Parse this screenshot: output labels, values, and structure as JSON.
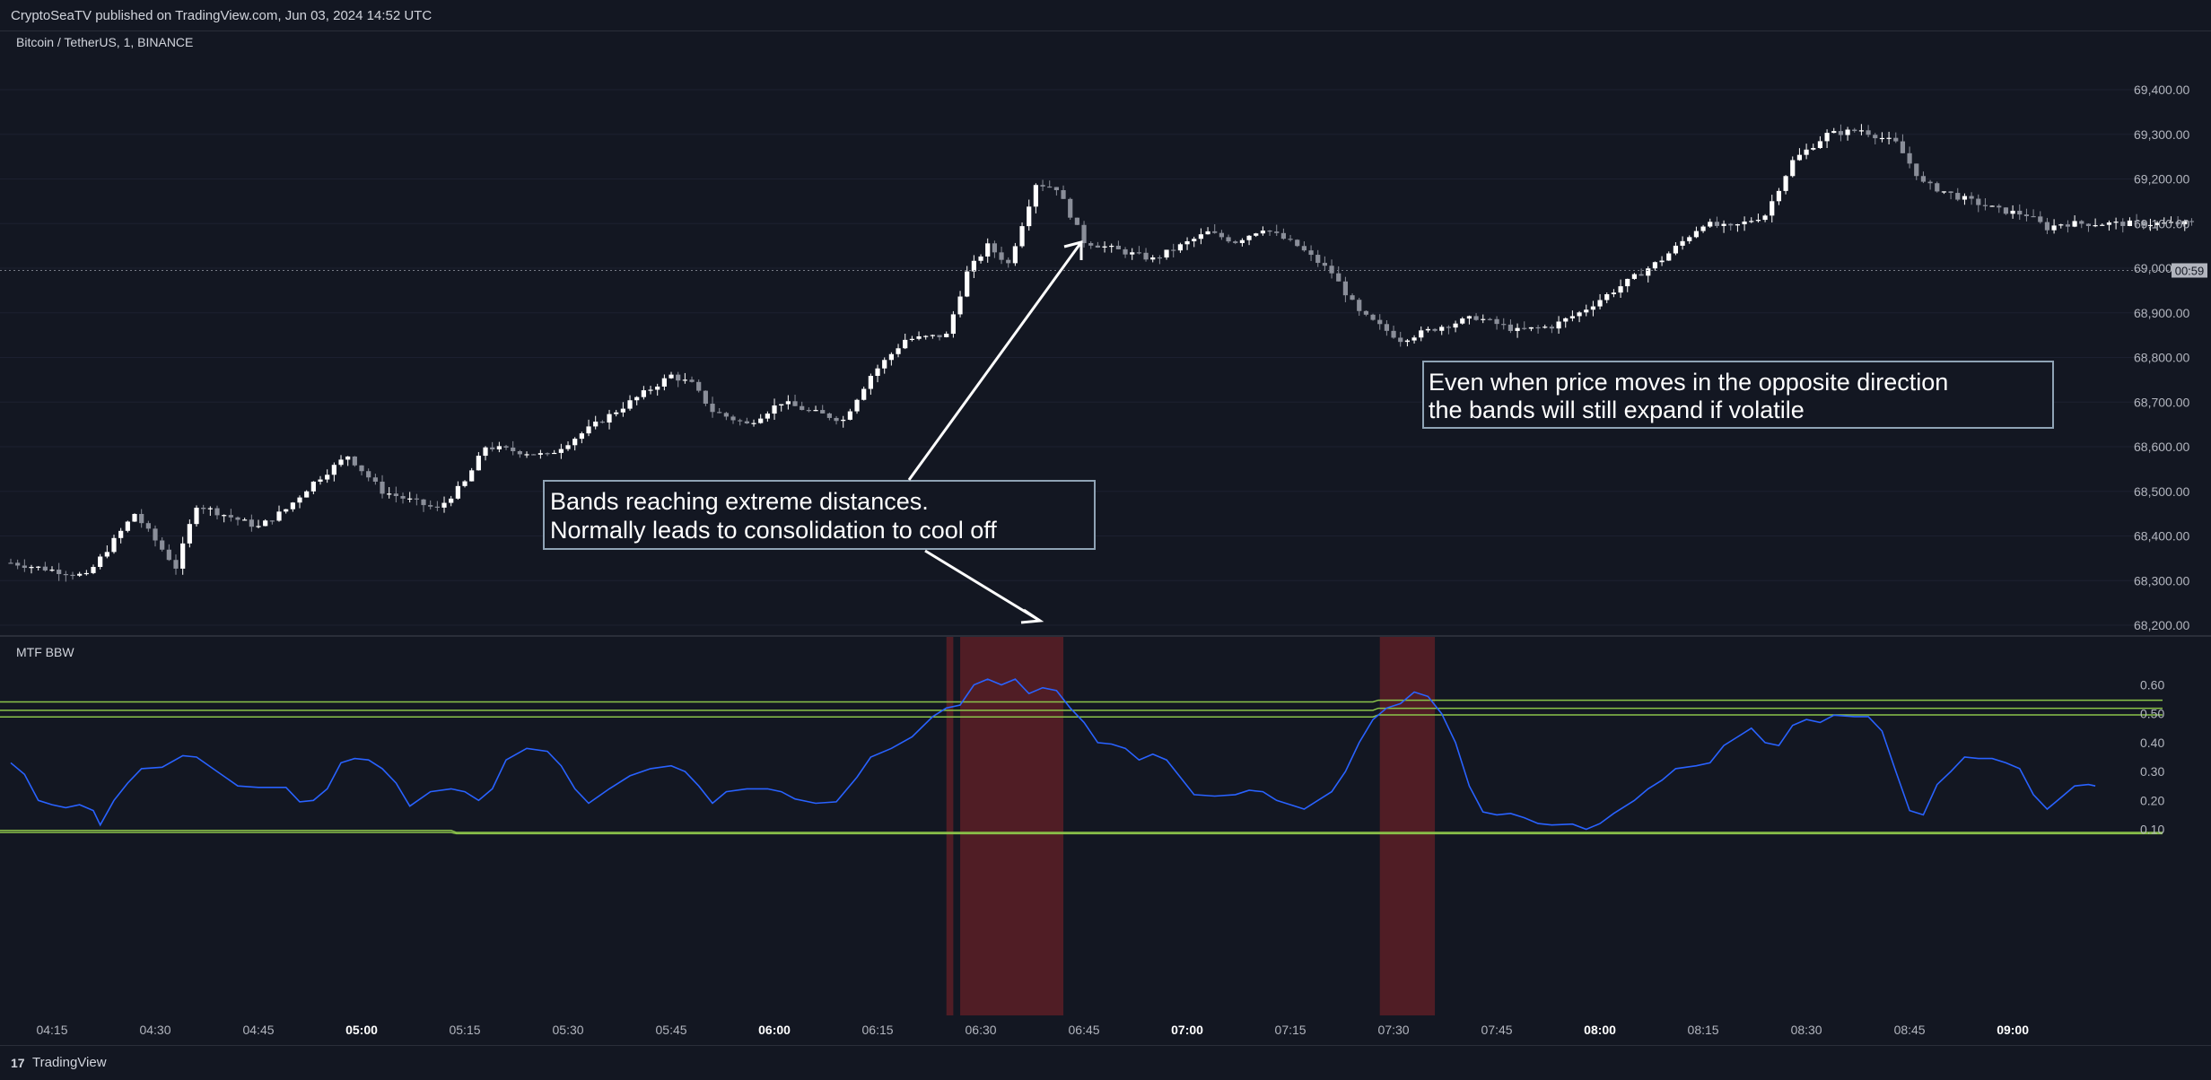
{
  "header": {
    "publish_text": "CryptoSeaTV published on TradingView.com, Jun 03, 2024 14:52 UTC"
  },
  "footer": {
    "brand": "TradingView",
    "logo_mark": "17"
  },
  "colors": {
    "background": "#131722",
    "up_candle": "#ffffff",
    "down_candle": "#8a8e99",
    "bbw_line": "#2962ff",
    "band_line": "#8bc34a",
    "highlight": "#5c1f26"
  },
  "chart_data": [
    {
      "type": "candlestick",
      "title": "Bitcoin / TetherUS, 1, BINANCE",
      "price_axis": {
        "ylim": [
          68200,
          69400
        ],
        "ticks": [
          "69,400.00",
          "69,300.00",
          "69,200.00",
          "69,100.00",
          "69,000.00",
          "68,900.00",
          "68,800.00",
          "68,700.00",
          "68,600.00",
          "68,500.00",
          "68,400.00",
          "68,300.00",
          "68,200.00"
        ],
        "tick_values": [
          69400,
          69300,
          69200,
          69100,
          69000,
          68900,
          68800,
          68700,
          68600,
          68500,
          68400,
          68300,
          68200
        ]
      },
      "current_price_line": 68995,
      "countdown_label": "00:59",
      "time_axis": {
        "start": "04:09",
        "minutes": 318,
        "ticks": [
          "04:15",
          "04:30",
          "04:45",
          "05:00",
          "05:15",
          "05:30",
          "05:45",
          "06:00",
          "06:15",
          "06:30",
          "06:45",
          "07:00",
          "07:15",
          "07:30",
          "07:45",
          "08:00",
          "08:15",
          "08:30",
          "08:45",
          "09:00"
        ],
        "bold_ticks": [
          "05:00",
          "06:00",
          "07:00",
          "08:00",
          "09:00"
        ]
      },
      "close_anchors": [
        [
          "04:09",
          68340
        ],
        [
          "04:20",
          68310
        ],
        [
          "04:27",
          68450
        ],
        [
          "04:33",
          68330
        ],
        [
          "04:36",
          68470
        ],
        [
          "04:45",
          68420
        ],
        [
          "04:49",
          68460
        ],
        [
          "04:53",
          68520
        ],
        [
          "04:58",
          68580
        ],
        [
          "05:03",
          68500
        ],
        [
          "05:11",
          68460
        ],
        [
          "05:15",
          68520
        ],
        [
          "05:18",
          68600
        ],
        [
          "05:27",
          68580
        ],
        [
          "05:33",
          68640
        ],
        [
          "05:39",
          68700
        ],
        [
          "05:45",
          68760
        ],
        [
          "05:48",
          68740
        ],
        [
          "05:51",
          68680
        ],
        [
          "05:56",
          68650
        ],
        [
          "06:01",
          68700
        ],
        [
          "06:05",
          68680
        ],
        [
          "06:10",
          68660
        ],
        [
          "06:14",
          68760
        ],
        [
          "06:19",
          68840
        ],
        [
          "06:25",
          68850
        ],
        [
          "06:28",
          68990
        ],
        [
          "06:31",
          69050
        ],
        [
          "06:34",
          69010
        ],
        [
          "06:38",
          69190
        ],
        [
          "06:41",
          69180
        ],
        [
          "06:45",
          69060
        ],
        [
          "06:50",
          69040
        ],
        [
          "06:55",
          69020
        ],
        [
          "06:59",
          69050
        ],
        [
          "07:03",
          69080
        ],
        [
          "07:07",
          69060
        ],
        [
          "07:11",
          69090
        ],
        [
          "07:16",
          69050
        ],
        [
          "07:21",
          68990
        ],
        [
          "07:25",
          68900
        ],
        [
          "07:31",
          68840
        ],
        [
          "07:37",
          68870
        ],
        [
          "07:42",
          68890
        ],
        [
          "07:48",
          68860
        ],
        [
          "07:53",
          68870
        ],
        [
          "07:57",
          68900
        ],
        [
          "08:04",
          68970
        ],
        [
          "08:09",
          69020
        ],
        [
          "08:15",
          69100
        ],
        [
          "08:19",
          69090
        ],
        [
          "08:24",
          69120
        ],
        [
          "08:28",
          69240
        ],
        [
          "08:33",
          69300
        ],
        [
          "08:38",
          69310
        ],
        [
          "08:43",
          69280
        ],
        [
          "08:47",
          69190
        ],
        [
          "08:52",
          69160
        ],
        [
          "08:58",
          69130
        ],
        [
          "09:02",
          69120
        ],
        [
          "09:05",
          69090
        ],
        [
          "09:07",
          69100
        ]
      ]
    },
    {
      "type": "line",
      "title": "MTF BBW",
      "ylim": [
        0.09,
        0.62
      ],
      "y_ticks": [
        "0.60",
        "0.50",
        "0.40",
        "0.30",
        "0.20",
        "0.10"
      ],
      "y_tick_values": [
        0.6,
        0.5,
        0.4,
        0.3,
        0.2,
        0.1
      ],
      "bands": [
        {
          "values": [
            0.541,
            0.547
          ],
          "switch": "07:27"
        },
        {
          "values": [
            0.512,
            0.519
          ],
          "switch": "07:27"
        },
        {
          "values": [
            0.489,
            0.496
          ],
          "switch": "07:27"
        },
        {
          "values": [
            0.096,
            0.089
          ],
          "switch": "05:13"
        },
        {
          "values": [
            0.089,
            0.085
          ],
          "switch": "05:13"
        }
      ],
      "highlight_regions": [
        [
          "06:25",
          "06:26"
        ],
        [
          "06:27",
          "06:42"
        ],
        [
          "07:28",
          "07:36"
        ]
      ],
      "series": [
        {
          "color": "#2962ff",
          "points": [
            [
              "04:09",
              0.33
            ],
            [
              "04:11",
              0.29
            ],
            [
              "04:13",
              0.2
            ],
            [
              "04:15",
              0.185
            ],
            [
              "04:17",
              0.175
            ],
            [
              "04:19",
              0.185
            ],
            [
              "04:21",
              0.165
            ],
            [
              "04:22",
              0.115
            ],
            [
              "04:24",
              0.2
            ],
            [
              "04:26",
              0.26
            ],
            [
              "04:28",
              0.31
            ],
            [
              "04:31",
              0.315
            ],
            [
              "04:34",
              0.355
            ],
            [
              "04:36",
              0.35
            ],
            [
              "04:39",
              0.3
            ],
            [
              "04:42",
              0.25
            ],
            [
              "04:45",
              0.245
            ],
            [
              "04:49",
              0.245
            ],
            [
              "04:51",
              0.195
            ],
            [
              "04:53",
              0.2
            ],
            [
              "04:55",
              0.24
            ],
            [
              "04:57",
              0.33
            ],
            [
              "04:59",
              0.345
            ],
            [
              "05:01",
              0.34
            ],
            [
              "05:03",
              0.31
            ],
            [
              "05:05",
              0.26
            ],
            [
              "05:07",
              0.18
            ],
            [
              "05:10",
              0.23
            ],
            [
              "05:13",
              0.24
            ],
            [
              "05:15",
              0.23
            ],
            [
              "05:17",
              0.2
            ],
            [
              "05:19",
              0.24
            ],
            [
              "05:21",
              0.34
            ],
            [
              "05:24",
              0.38
            ],
            [
              "05:27",
              0.37
            ],
            [
              "05:29",
              0.32
            ],
            [
              "05:31",
              0.24
            ],
            [
              "05:33",
              0.19
            ],
            [
              "05:36",
              0.24
            ],
            [
              "05:39",
              0.285
            ],
            [
              "05:42",
              0.31
            ],
            [
              "05:45",
              0.32
            ],
            [
              "05:47",
              0.3
            ],
            [
              "05:49",
              0.25
            ],
            [
              "05:51",
              0.19
            ],
            [
              "05:53",
              0.23
            ],
            [
              "05:56",
              0.24
            ],
            [
              "05:59",
              0.24
            ],
            [
              "06:01",
              0.23
            ],
            [
              "06:03",
              0.205
            ],
            [
              "06:06",
              0.19
            ],
            [
              "06:09",
              0.195
            ],
            [
              "06:12",
              0.28
            ],
            [
              "06:14",
              0.35
            ],
            [
              "06:17",
              0.38
            ],
            [
              "06:20",
              0.42
            ],
            [
              "06:23",
              0.49
            ],
            [
              "06:25",
              0.52
            ],
            [
              "06:27",
              0.53
            ],
            [
              "06:29",
              0.6
            ],
            [
              "06:31",
              0.62
            ],
            [
              "06:33",
              0.6
            ],
            [
              "06:35",
              0.62
            ],
            [
              "06:37",
              0.57
            ],
            [
              "06:39",
              0.59
            ],
            [
              "06:41",
              0.58
            ],
            [
              "06:43",
              0.52
            ],
            [
              "06:45",
              0.47
            ],
            [
              "06:47",
              0.4
            ],
            [
              "06:49",
              0.395
            ],
            [
              "06:51",
              0.38
            ],
            [
              "06:53",
              0.34
            ],
            [
              "06:55",
              0.36
            ],
            [
              "06:57",
              0.34
            ],
            [
              "06:59",
              0.28
            ],
            [
              "07:01",
              0.22
            ],
            [
              "07:04",
              0.215
            ],
            [
              "07:07",
              0.22
            ],
            [
              "07:09",
              0.235
            ],
            [
              "07:11",
              0.23
            ],
            [
              "07:13",
              0.2
            ],
            [
              "07:15",
              0.185
            ],
            [
              "07:17",
              0.17
            ],
            [
              "07:19",
              0.2
            ],
            [
              "07:21",
              0.23
            ],
            [
              "07:23",
              0.3
            ],
            [
              "07:25",
              0.4
            ],
            [
              "07:27",
              0.48
            ],
            [
              "07:29",
              0.52
            ],
            [
              "07:31",
              0.535
            ],
            [
              "07:33",
              0.575
            ],
            [
              "07:35",
              0.56
            ],
            [
              "07:37",
              0.5
            ],
            [
              "07:39",
              0.4
            ],
            [
              "07:41",
              0.25
            ],
            [
              "07:43",
              0.16
            ],
            [
              "07:45",
              0.15
            ],
            [
              "07:47",
              0.155
            ],
            [
              "07:49",
              0.14
            ],
            [
              "07:51",
              0.12
            ],
            [
              "07:53",
              0.115
            ],
            [
              "07:56",
              0.118
            ],
            [
              "07:58",
              0.1
            ],
            [
              "08:00",
              0.12
            ],
            [
              "08:02",
              0.155
            ],
            [
              "08:05",
              0.2
            ],
            [
              "08:07",
              0.24
            ],
            [
              "08:09",
              0.27
            ],
            [
              "08:11",
              0.31
            ],
            [
              "08:14",
              0.32
            ],
            [
              "08:16",
              0.33
            ],
            [
              "08:18",
              0.39
            ],
            [
              "08:20",
              0.42
            ],
            [
              "08:22",
              0.45
            ],
            [
              "08:24",
              0.4
            ],
            [
              "08:26",
              0.39
            ],
            [
              "08:28",
              0.46
            ],
            [
              "08:30",
              0.48
            ],
            [
              "08:32",
              0.47
            ],
            [
              "08:34",
              0.495
            ],
            [
              "08:37",
              0.49
            ],
            [
              "08:39",
              0.49
            ],
            [
              "08:41",
              0.44
            ],
            [
              "08:43",
              0.3
            ],
            [
              "08:45",
              0.165
            ],
            [
              "08:47",
              0.15
            ],
            [
              "08:49",
              0.255
            ],
            [
              "08:51",
              0.3
            ],
            [
              "08:53",
              0.35
            ],
            [
              "08:55",
              0.345
            ],
            [
              "08:57",
              0.345
            ],
            [
              "08:59",
              0.33
            ],
            [
              "09:01",
              0.31
            ],
            [
              "09:03",
              0.22
            ],
            [
              "09:05",
              0.17
            ],
            [
              "09:07",
              0.21
            ],
            [
              "09:09",
              0.25
            ],
            [
              "09:11",
              0.255
            ],
            [
              "09:12",
              0.25
            ]
          ]
        }
      ]
    }
  ],
  "annotations": [
    {
      "lines": [
        "Bands reaching extreme distances.",
        "Normally leads to consolidation to cool off"
      ]
    },
    {
      "lines": [
        "Even when price moves in the opposite direction",
        "the bands will still expand if volatile"
      ]
    }
  ]
}
